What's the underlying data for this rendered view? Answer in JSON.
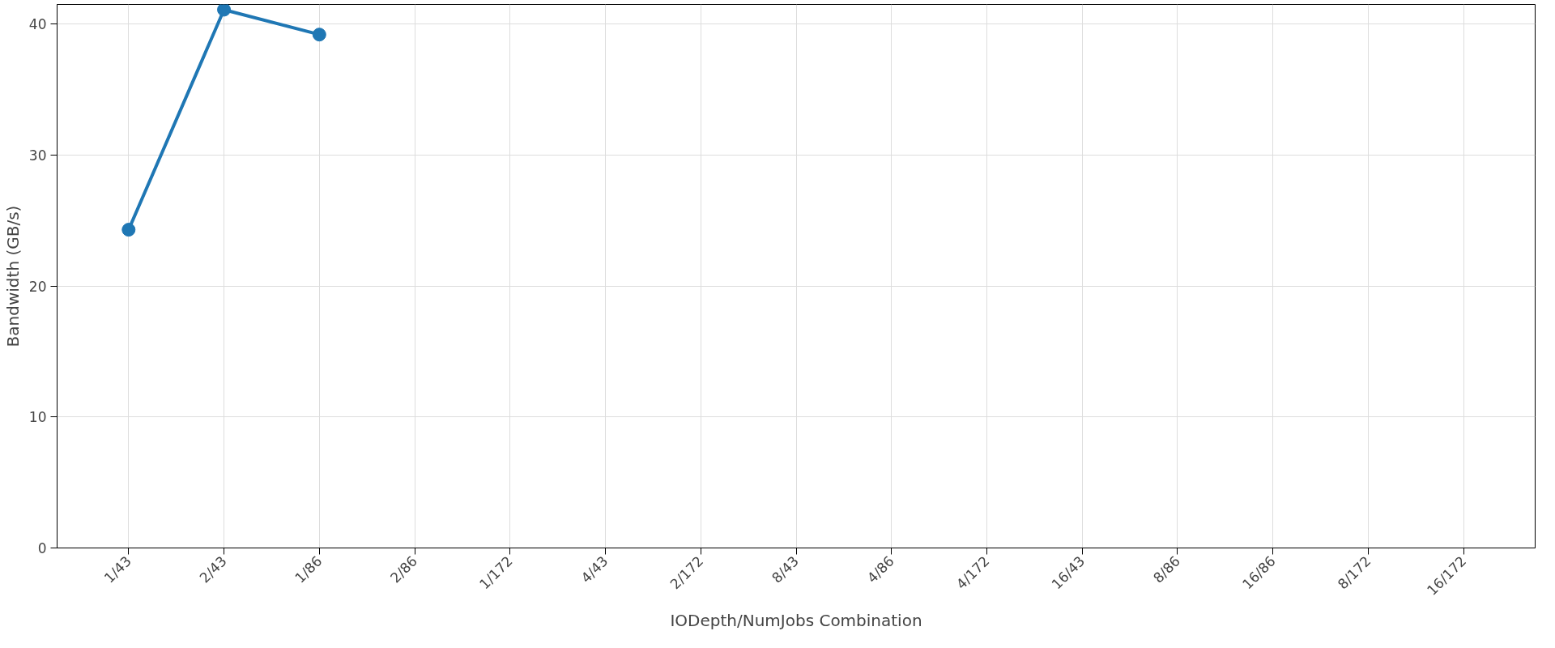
{
  "chart_data": {
    "type": "line",
    "xlabel": "IODepth/NumJobs Combination",
    "ylabel": "Bandwidth (GB/s)",
    "categories": [
      "1/43",
      "2/43",
      "1/86",
      "2/86",
      "1/172",
      "4/43",
      "2/172",
      "8/43",
      "4/86",
      "4/172",
      "16/43",
      "8/86",
      "16/86",
      "8/172",
      "16/172"
    ],
    "series": [
      {
        "color": "#1f77b4",
        "values": [
          24.3,
          41.1,
          39.2,
          null,
          null,
          null,
          null,
          null,
          null,
          null,
          null,
          null,
          null,
          null,
          null
        ]
      }
    ],
    "ylim": [
      0,
      41.5
    ],
    "yticks": [
      0,
      10,
      20,
      30,
      40
    ],
    "grid": true,
    "marker": "circle",
    "line_style": "solid"
  }
}
